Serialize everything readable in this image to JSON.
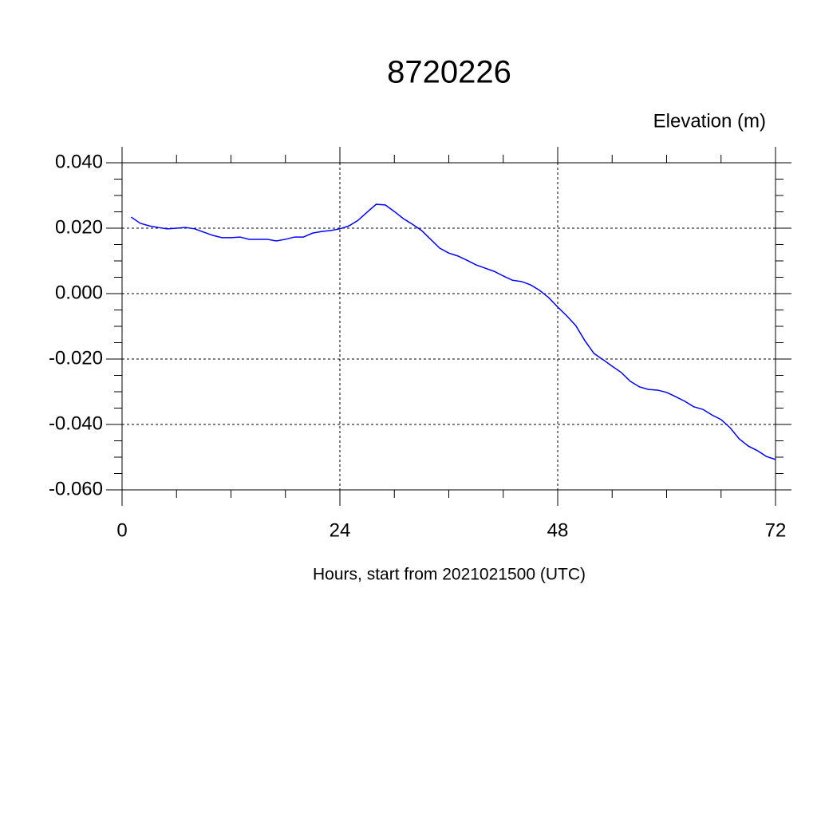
{
  "chart_data": {
    "type": "line",
    "title": "8720226",
    "y_label": "Elevation (m)",
    "x_label": "Hours, start from 2021021500 (UTC)",
    "xlim": [
      0,
      72
    ],
    "xticks": [
      0,
      24,
      48,
      72
    ],
    "x_minor_step": 6,
    "ylim": [
      -0.06,
      0.04
    ],
    "yticks": [
      {
        "value": -0.06,
        "label": "-0.060"
      },
      {
        "value": -0.04,
        "label": "-0.040"
      },
      {
        "value": -0.02,
        "label": "-0.020"
      },
      {
        "value": 0,
        "label": "0.000"
      },
      {
        "value": 0.02,
        "label": "0.020"
      },
      {
        "value": 0.04,
        "label": "0.040"
      }
    ],
    "y_minor_step": 0.005,
    "grid": true,
    "x": [
      1,
      2,
      3,
      4,
      5,
      6,
      7,
      8,
      9,
      10,
      11,
      12,
      13,
      14,
      15,
      16,
      17,
      18,
      19,
      20,
      21,
      22,
      23,
      24,
      25,
      26,
      27,
      28,
      29,
      30,
      31,
      32,
      33,
      34,
      35,
      36,
      37,
      38,
      39,
      40,
      41,
      42,
      43,
      44,
      45,
      46,
      47,
      48,
      49,
      50,
      51,
      52,
      53,
      54,
      55,
      56,
      57,
      58,
      59,
      60,
      61,
      62,
      63,
      64,
      65,
      66,
      67,
      68,
      69,
      70,
      71,
      72
    ],
    "series": [
      {
        "color": "#0000ff",
        "values": [
          0.0234,
          0.0215,
          0.0207,
          0.0202,
          0.0198,
          0.02,
          0.0202,
          0.0198,
          0.0188,
          0.0178,
          0.0171,
          0.0171,
          0.0173,
          0.0166,
          0.0166,
          0.0166,
          0.0161,
          0.0166,
          0.0173,
          0.0173,
          0.0185,
          0.019,
          0.0193,
          0.0198,
          0.0207,
          0.0224,
          0.0249,
          0.0273,
          0.0271,
          0.0251,
          0.0229,
          0.0212,
          0.0193,
          0.0166,
          0.0139,
          0.0124,
          0.0115,
          0.0102,
          0.0088,
          0.0078,
          0.0068,
          0.0054,
          0.0041,
          0.0037,
          0.0027,
          0.001,
          -0.0012,
          -0.0041,
          -0.0068,
          -0.0098,
          -0.0144,
          -0.0183,
          -0.0202,
          -0.0222,
          -0.0241,
          -0.0268,
          -0.0285,
          -0.0293,
          -0.0295,
          -0.0302,
          -0.0315,
          -0.0329,
          -0.0346,
          -0.0354,
          -0.0371,
          -0.0385,
          -0.041,
          -0.0444,
          -0.0466,
          -0.048,
          -0.0498,
          -0.0507
        ]
      }
    ]
  }
}
